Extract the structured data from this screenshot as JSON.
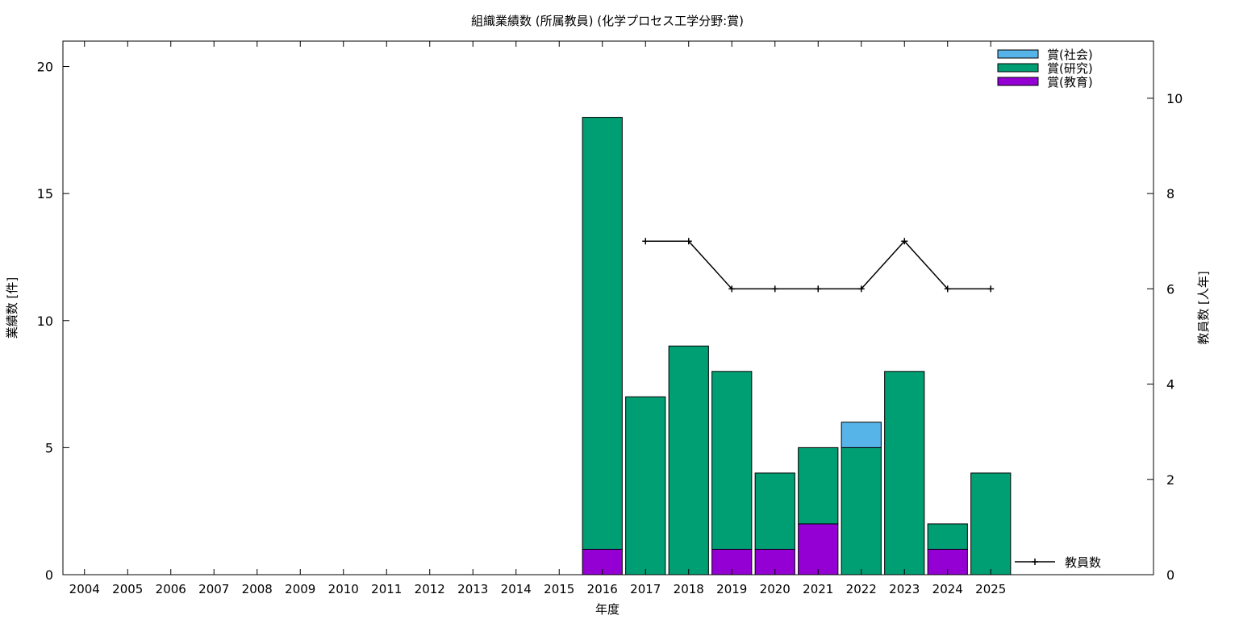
{
  "chart_data": {
    "type": "bar",
    "title": "組織業績数 (所属教員) (化学プロセス工学分野:賞)",
    "xlabel": "年度",
    "ylabel": "業績数 [件]",
    "y2label": "教員数 [人年]",
    "categories": [
      "2004",
      "2005",
      "2006",
      "2007",
      "2008",
      "2009",
      "2010",
      "2011",
      "2012",
      "2013",
      "2014",
      "2015",
      "2016",
      "2017",
      "2018",
      "2019",
      "2020",
      "2021",
      "2022",
      "2023",
      "2024",
      "2025"
    ],
    "ylim": [
      0,
      21
    ],
    "y2lim": [
      0,
      11.2
    ],
    "yticks": [
      0,
      5,
      10,
      15,
      20
    ],
    "y2ticks": [
      0,
      2,
      4,
      6,
      8,
      10
    ],
    "stacked": true,
    "series": [
      {
        "name": "賞(教育)",
        "color": "#9400d3",
        "values": [
          0,
          0,
          0,
          0,
          0,
          0,
          0,
          0,
          0,
          0,
          0,
          0,
          1,
          0,
          0,
          1,
          1,
          2,
          0,
          0,
          1,
          0
        ]
      },
      {
        "name": "賞(研究)",
        "color": "#009e73",
        "values": [
          0,
          0,
          0,
          0,
          0,
          0,
          0,
          0,
          0,
          0,
          0,
          0,
          17,
          7,
          9,
          7,
          3,
          3,
          5,
          8,
          1,
          4
        ]
      },
      {
        "name": "賞(社会)",
        "color": "#56b4e9",
        "values": [
          0,
          0,
          0,
          0,
          0,
          0,
          0,
          0,
          0,
          0,
          0,
          0,
          0,
          0,
          0,
          0,
          0,
          0,
          1,
          0,
          0,
          0
        ]
      }
    ],
    "line_series": {
      "name": "教員数",
      "axis": "y2",
      "color": "#000000",
      "values": [
        null,
        null,
        null,
        null,
        null,
        null,
        null,
        null,
        null,
        null,
        null,
        null,
        null,
        7,
        7,
        6,
        6,
        6,
        6,
        7,
        6,
        6
      ]
    },
    "legend_position": "top-right",
    "grid": false
  }
}
